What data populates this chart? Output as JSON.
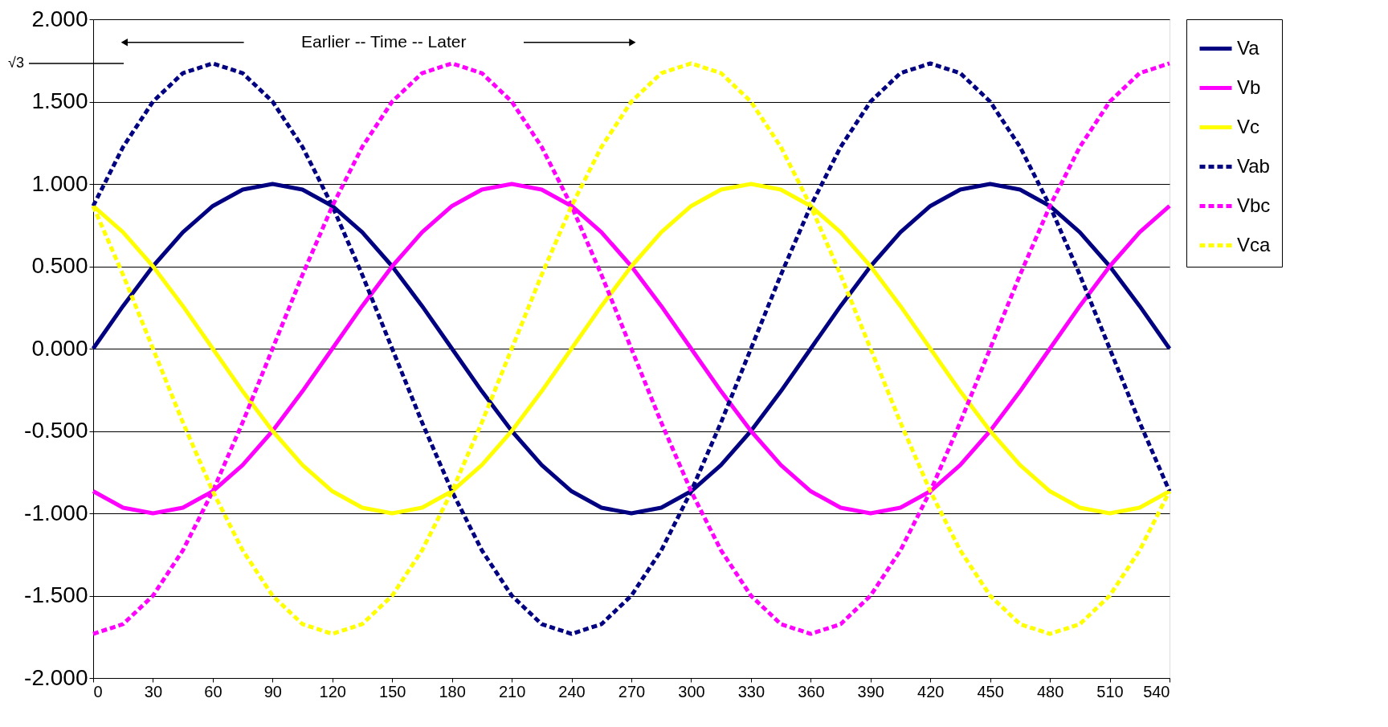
{
  "chart_data": {
    "type": "line",
    "x": [
      0,
      15,
      30,
      45,
      60,
      75,
      90,
      105,
      120,
      135,
      150,
      165,
      180,
      195,
      210,
      225,
      240,
      255,
      270,
      285,
      300,
      315,
      330,
      345,
      360,
      375,
      390,
      405,
      420,
      435,
      450,
      465,
      480,
      495,
      510,
      525,
      540
    ],
    "series": [
      {
        "name": "Va",
        "color": "#000080",
        "line_style": "solid",
        "values": [
          0,
          0.259,
          0.5,
          0.707,
          0.866,
          0.966,
          1,
          0.966,
          0.866,
          0.707,
          0.5,
          0.259,
          0,
          -0.259,
          -0.5,
          -0.707,
          -0.866,
          -0.966,
          -1,
          -0.966,
          -0.866,
          -0.707,
          -0.5,
          -0.259,
          0,
          0.259,
          0.5,
          0.707,
          0.866,
          0.966,
          1,
          0.966,
          0.866,
          0.707,
          0.5,
          0.259,
          0
        ]
      },
      {
        "name": "Vb",
        "color": "#ff00ff",
        "line_style": "solid",
        "values": [
          -0.866,
          -0.966,
          -1,
          -0.966,
          -0.866,
          -0.707,
          -0.5,
          -0.259,
          0,
          0.259,
          0.5,
          0.707,
          0.866,
          0.966,
          1,
          0.966,
          0.866,
          0.707,
          0.5,
          0.259,
          0,
          -0.259,
          -0.5,
          -0.707,
          -0.866,
          -0.966,
          -1,
          -0.966,
          -0.866,
          -0.707,
          -0.5,
          -0.259,
          0,
          0.259,
          0.5,
          0.707,
          0.866
        ]
      },
      {
        "name": "Vc",
        "color": "#ffff00",
        "line_style": "solid",
        "values": [
          0.866,
          0.707,
          0.5,
          0.259,
          0,
          -0.259,
          -0.5,
          -0.707,
          -0.866,
          -0.966,
          -1,
          -0.966,
          -0.866,
          -0.707,
          -0.5,
          -0.259,
          0,
          0.259,
          0.5,
          0.707,
          0.866,
          0.966,
          1,
          0.966,
          0.866,
          0.707,
          0.5,
          0.259,
          0,
          -0.259,
          -0.5,
          -0.707,
          -0.866,
          -0.966,
          -1,
          -0.966,
          -0.866
        ]
      },
      {
        "name": "Vab",
        "color": "#000080",
        "line_style": "dashed",
        "values": [
          0.866,
          1.225,
          1.5,
          1.673,
          1.732,
          1.673,
          1.5,
          1.225,
          0.866,
          0.448,
          0,
          -0.448,
          -0.866,
          -1.225,
          -1.5,
          -1.673,
          -1.732,
          -1.673,
          -1.5,
          -1.225,
          -0.866,
          -0.448,
          0,
          0.448,
          0.866,
          1.225,
          1.5,
          1.673,
          1.732,
          1.673,
          1.5,
          1.225,
          0.866,
          0.448,
          0,
          -0.448,
          -0.866
        ]
      },
      {
        "name": "Vbc",
        "color": "#ff00ff",
        "line_style": "dashed",
        "values": [
          -1.732,
          -1.673,
          -1.5,
          -1.225,
          -0.866,
          -0.448,
          0,
          0.448,
          0.866,
          1.225,
          1.5,
          1.673,
          1.732,
          1.673,
          1.5,
          1.225,
          0.866,
          0.448,
          0,
          -0.448,
          -0.866,
          -1.225,
          -1.5,
          -1.673,
          -1.732,
          -1.673,
          -1.5,
          -1.225,
          -0.866,
          -0.448,
          0,
          0.448,
          0.866,
          1.225,
          1.5,
          1.673,
          1.732
        ]
      },
      {
        "name": "Vca",
        "color": "#ffff00",
        "line_style": "dashed",
        "values": [
          0.866,
          0.448,
          0,
          -0.448,
          -0.866,
          -1.225,
          -1.5,
          -1.673,
          -1.732,
          -1.673,
          -1.5,
          -1.225,
          -0.866,
          -0.448,
          0,
          0.448,
          0.866,
          1.225,
          1.5,
          1.673,
          1.732,
          1.673,
          1.5,
          1.225,
          0.866,
          0.448,
          0,
          -0.448,
          -0.866,
          -1.225,
          -1.5,
          -1.673,
          -1.732,
          -1.673,
          -1.5,
          -1.225,
          -0.866
        ]
      }
    ],
    "xlim": [
      0,
      540
    ],
    "xticks": [
      0,
      30,
      60,
      90,
      120,
      150,
      180,
      210,
      240,
      270,
      300,
      330,
      360,
      390,
      420,
      450,
      480,
      510,
      540
    ],
    "ylim": [
      -2,
      2
    ],
    "yticks": [
      {
        "value": -2,
        "label": "-2.000"
      },
      {
        "value": -1.5,
        "label": "-1.500"
      },
      {
        "value": -1,
        "label": "-1.000"
      },
      {
        "value": -0.5,
        "label": "-0.500"
      },
      {
        "value": 0,
        "label": "0.000"
      },
      {
        "value": 0.5,
        "label": "0.500"
      },
      {
        "value": 1,
        "label": "1.000"
      },
      {
        "value": 1.5,
        "label": "1.500"
      },
      {
        "value": 2,
        "label": "2.000"
      }
    ],
    "grid": "y",
    "legend": "right",
    "annotations": [
      "√3",
      "Earlier -- Time -- Later"
    ]
  }
}
